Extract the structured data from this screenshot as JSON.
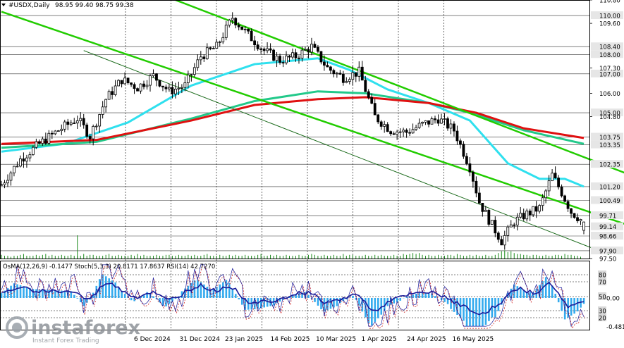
{
  "header": {
    "symbol_timeframe": "#USDX,Daily",
    "ohlc": "98.95 99.40 98.75 99.38"
  },
  "indicator_header": "OsMA(12,26,9) -0.1477  Stoch(5,3,3) 20.8171 17.8637  RSI(14) 42.7270",
  "watermark": {
    "brand": "instaforex",
    "tagline": "Instant Forex Trading"
  },
  "colors": {
    "ma_fast": "#2fe0ee",
    "ma_mid": "#22c98a",
    "ma_slow": "#e01010",
    "channel": "#22cc00",
    "candles": "#000000",
    "osma": "#33aaee",
    "rsi": "#1a1a99",
    "stoch_main": "#1a1a99",
    "stoch_signal": "#cc1111",
    "grid_dash": "#000000"
  },
  "chart_data": {
    "type": "candlestick",
    "instrument": "#USDX",
    "timeframe": "Daily",
    "last_ohlc": {
      "open": 98.95,
      "high": 99.4,
      "low": 98.75,
      "close": 99.38
    },
    "ylim": [
      97.5,
      110.8
    ],
    "price_scale_ticks": [
      110.8,
      109.6,
      107.3,
      106.0,
      104.8,
      97.5
    ],
    "level_lines": [
      110.0,
      108.4,
      108.0,
      107.0,
      105.0,
      103.75,
      103.35,
      102.35,
      101.2,
      100.49,
      99.71,
      99.14,
      98.66,
      97.9
    ],
    "x_tick_labels": [
      "6 Dec 2024",
      "31 Dec 2024",
      "23 Jan 2025",
      "14 Feb 2025",
      "10 Mar 2025",
      "1 Apr 2025",
      "24 Apr 2025",
      "16 May 2025"
    ],
    "close_path": [
      [
        0,
        101.3
      ],
      [
        6,
        102.6
      ],
      [
        12,
        103.4
      ],
      [
        18,
        104.1
      ],
      [
        24,
        104.7
      ],
      [
        28,
        103.8
      ],
      [
        33,
        105.7
      ],
      [
        38,
        106.7
      ],
      [
        43,
        106.3
      ],
      [
        48,
        106.9
      ],
      [
        53,
        106.1
      ],
      [
        58,
        106.4
      ],
      [
        63,
        107.9
      ],
      [
        68,
        108.4
      ],
      [
        73,
        109.9
      ],
      [
        78,
        109.0
      ],
      [
        83,
        108.2
      ],
      [
        88,
        107.7
      ],
      [
        93,
        107.9
      ],
      [
        98,
        108.4
      ],
      [
        103,
        107.3
      ],
      [
        108,
        106.8
      ],
      [
        113,
        107.1
      ],
      [
        118,
        104.8
      ],
      [
        123,
        104.1
      ],
      [
        128,
        104.0
      ],
      [
        133,
        104.4
      ],
      [
        138,
        104.7
      ],
      [
        143,
        104.1
      ],
      [
        148,
        102.2
      ],
      [
        151,
        100.4
      ],
      [
        154,
        99.5
      ],
      [
        158,
        98.4
      ],
      [
        162,
        99.4
      ],
      [
        166,
        99.8
      ],
      [
        170,
        100.1
      ],
      [
        174,
        101.8
      ],
      [
        177,
        100.9
      ],
      [
        180,
        99.9
      ],
      [
        184,
        99.38
      ]
    ],
    "moving_averages": [
      {
        "color": "ma_fast",
        "points": [
          [
            0,
            103.0
          ],
          [
            20,
            103.4
          ],
          [
            40,
            104.5
          ],
          [
            60,
            106.4
          ],
          [
            80,
            107.5
          ],
          [
            100,
            107.8
          ],
          [
            110,
            107.2
          ],
          [
            122,
            106.2
          ],
          [
            135,
            105.5
          ],
          [
            148,
            104.6
          ],
          [
            160,
            102.4
          ],
          [
            170,
            101.6
          ],
          [
            178,
            101.6
          ],
          [
            184,
            101.2
          ]
        ]
      },
      {
        "color": "ma_mid",
        "points": [
          [
            0,
            103.2
          ],
          [
            30,
            103.5
          ],
          [
            60,
            104.7
          ],
          [
            80,
            105.6
          ],
          [
            100,
            106.1
          ],
          [
            115,
            106.0
          ],
          [
            135,
            105.5
          ],
          [
            148,
            105.0
          ],
          [
            165,
            104.1
          ],
          [
            184,
            103.4
          ]
        ]
      },
      {
        "color": "ma_slow",
        "points": [
          [
            0,
            103.4
          ],
          [
            30,
            103.6
          ],
          [
            60,
            104.6
          ],
          [
            80,
            105.4
          ],
          [
            100,
            105.7
          ],
          [
            115,
            105.8
          ],
          [
            135,
            105.5
          ],
          [
            150,
            105.0
          ],
          [
            165,
            104.2
          ],
          [
            184,
            103.7
          ]
        ]
      }
    ],
    "channel_lines": [
      {
        "from": [
          0,
          110.2
        ],
        "to": [
          229,
          97.5
        ]
      },
      {
        "from": [
          55,
          110.8
        ],
        "to": [
          229,
          99.9
        ]
      },
      {
        "from": [
          26,
          108.2
        ],
        "to": [
          192,
          97.7
        ]
      }
    ],
    "volume": [
      4,
      3,
      3,
      2,
      3,
      3,
      4,
      5,
      3,
      3,
      3,
      4,
      3,
      4,
      5,
      3,
      4,
      3,
      3,
      4,
      3,
      3,
      4,
      3,
      3,
      3,
      5,
      3,
      4,
      4,
      3,
      3,
      3,
      4,
      5,
      3,
      3,
      4,
      3,
      3,
      3,
      4,
      3,
      5,
      3,
      4,
      3,
      3,
      3,
      4,
      3,
      3,
      4,
      4,
      3,
      3,
      4,
      3,
      3,
      4,
      3,
      4,
      3,
      3,
      4,
      5,
      3,
      3,
      3,
      4,
      3,
      3,
      4,
      3,
      4,
      3,
      3,
      4,
      3,
      3,
      3,
      4,
      5,
      3,
      3,
      4,
      3,
      4,
      3,
      3,
      4,
      3,
      3,
      3,
      4,
      3,
      3,
      4,
      5,
      4,
      3,
      3,
      4,
      3,
      3,
      4,
      3,
      3,
      5,
      3,
      4,
      4,
      3,
      3,
      3,
      4,
      3,
      3,
      4,
      3,
      4,
      3,
      3,
      3,
      4,
      3,
      3,
      5,
      4,
      5,
      6,
      5,
      6,
      4,
      3,
      4,
      3,
      3,
      4,
      3,
      3,
      4,
      4,
      3,
      5,
      4,
      3,
      3,
      4,
      3,
      4,
      3,
      3,
      4,
      3,
      3,
      4,
      6,
      8,
      9,
      7,
      8,
      6,
      5,
      5,
      4,
      4,
      3,
      4,
      4,
      3,
      3,
      4,
      3,
      3,
      4,
      4,
      3,
      5,
      4,
      4,
      3,
      3,
      2
    ],
    "oscillators": {
      "osma_levels": [
        0.0
      ],
      "stoch_rsi_levels": [
        80,
        70,
        50,
        30,
        20
      ],
      "osma_current": -0.1477,
      "osma_scale_bottom": -0.4812,
      "stoch_main_current": 20.8171,
      "stoch_signal_current": 17.8637,
      "rsi_current": 42.727
    }
  }
}
